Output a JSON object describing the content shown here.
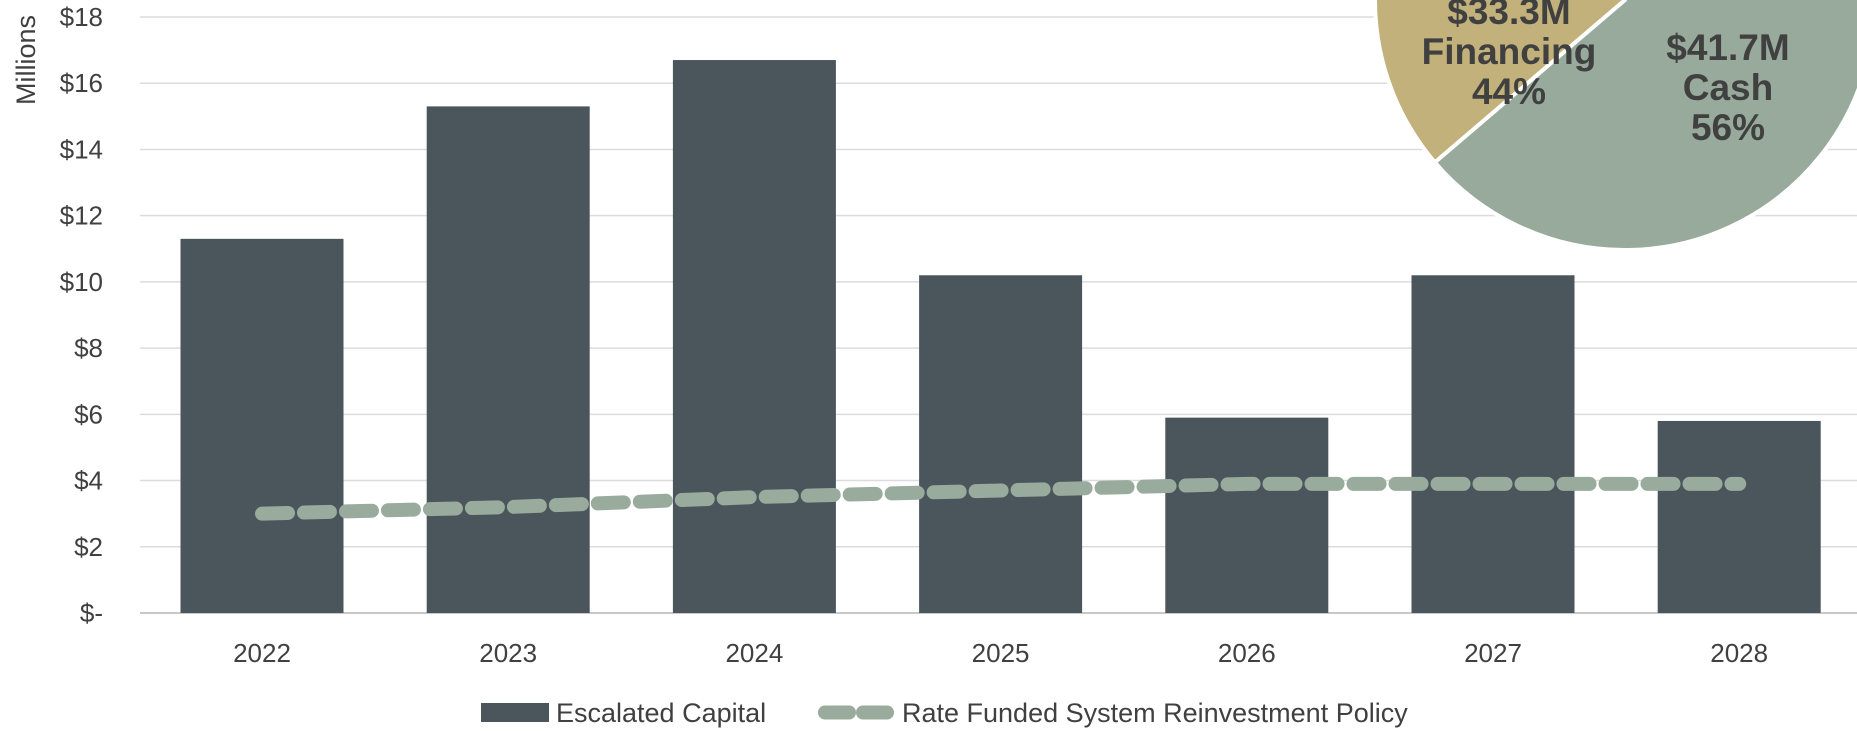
{
  "chart_data": [
    {
      "type": "bar",
      "ylabel": "Millions",
      "xlabel": "",
      "ylim": [
        0,
        18
      ],
      "y_ticks": [
        0,
        2,
        4,
        6,
        8,
        10,
        12,
        14,
        16,
        18
      ],
      "y_tick_labels": [
        "$-",
        "$2",
        "$4",
        "$6",
        "$8",
        "$10",
        "$12",
        "$14",
        "$16",
        "$18"
      ],
      "categories": [
        "2022",
        "2023",
        "2024",
        "2025",
        "2026",
        "2027",
        "2028"
      ],
      "grid": true,
      "series": [
        {
          "name": "Escalated Capital",
          "kind": "bar",
          "values": [
            11.3,
            15.3,
            16.7,
            10.2,
            5.9,
            10.2,
            5.8
          ],
          "color": "#4a555c"
        },
        {
          "name": "Rate Funded System Reinvestment Policy",
          "kind": "line",
          "style": "dashed",
          "values": [
            3.0,
            3.2,
            3.5,
            3.7,
            3.9,
            3.9,
            3.9
          ],
          "color": "#98ab9d"
        }
      ],
      "legend": {
        "placement": "bottom"
      }
    },
    {
      "type": "pie",
      "slices": [
        {
          "amount": "$33.3M",
          "name": "Financing",
          "pct": "44%",
          "value": 44,
          "color": "#c2b17a"
        },
        {
          "amount": "$41.7M",
          "name": "Cash",
          "pct": "56%",
          "value": 56,
          "color": "#97aa9c"
        }
      ]
    }
  ]
}
